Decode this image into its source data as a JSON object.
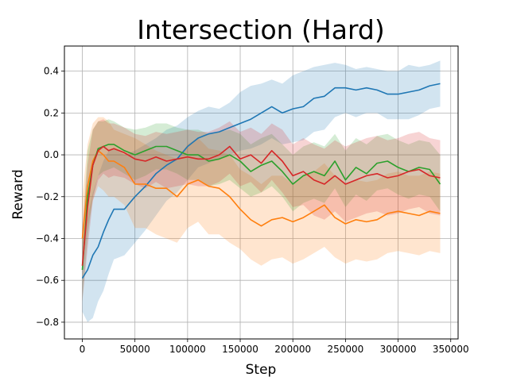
{
  "chart_data": {
    "type": "line",
    "title": "Intersection (Hard)",
    "xlabel": "Step",
    "ylabel": "Reward",
    "xlim": [
      -17000,
      357000
    ],
    "ylim": [
      -0.88,
      0.52
    ],
    "xticks": [
      0,
      50000,
      100000,
      150000,
      200000,
      250000,
      300000,
      350000
    ],
    "xtick_labels": [
      "0",
      "50000",
      "100000",
      "150000",
      "200000",
      "250000",
      "300000",
      "350000"
    ],
    "yticks": [
      -0.8,
      -0.6,
      -0.4,
      -0.2,
      0.0,
      0.2,
      0.4
    ],
    "ytick_labels": [
      "−0.8",
      "−0.6",
      "−0.4",
      "−0.2",
      "0.0",
      "0.2",
      "0.4"
    ],
    "grid": true,
    "series": [
      {
        "color": "#1f77b4",
        "x": [
          0,
          5000,
          10000,
          15000,
          20000,
          25000,
          30000,
          40000,
          50000,
          60000,
          70000,
          80000,
          90000,
          100000,
          110000,
          120000,
          130000,
          140000,
          150000,
          160000,
          170000,
          180000,
          190000,
          200000,
          210000,
          220000,
          230000,
          240000,
          250000,
          260000,
          270000,
          280000,
          290000,
          300000,
          310000,
          320000,
          330000,
          340000
        ],
        "y": [
          -0.59,
          -0.55,
          -0.48,
          -0.44,
          -0.37,
          -0.31,
          -0.26,
          -0.26,
          -0.2,
          -0.15,
          -0.09,
          -0.05,
          -0.02,
          0.04,
          0.08,
          0.1,
          0.11,
          0.13,
          0.15,
          0.17,
          0.2,
          0.23,
          0.2,
          0.22,
          0.23,
          0.27,
          0.28,
          0.32,
          0.32,
          0.31,
          0.32,
          0.31,
          0.29,
          0.29,
          0.3,
          0.31,
          0.33,
          0.34
        ],
        "upper": [
          -0.42,
          -0.3,
          -0.18,
          -0.1,
          -0.03,
          0.02,
          0.03,
          0.0,
          0.02,
          0.05,
          0.08,
          0.12,
          0.14,
          0.18,
          0.21,
          0.23,
          0.22,
          0.25,
          0.3,
          0.33,
          0.34,
          0.36,
          0.34,
          0.38,
          0.4,
          0.42,
          0.43,
          0.44,
          0.43,
          0.41,
          0.42,
          0.41,
          0.4,
          0.4,
          0.43,
          0.42,
          0.43,
          0.45
        ],
        "lower": [
          -0.75,
          -0.8,
          -0.78,
          -0.7,
          -0.65,
          -0.57,
          -0.5,
          -0.48,
          -0.42,
          -0.36,
          -0.29,
          -0.22,
          -0.18,
          -0.12,
          -0.06,
          -0.04,
          -0.02,
          0.0,
          0.02,
          0.03,
          0.05,
          0.08,
          0.05,
          0.06,
          0.07,
          0.11,
          0.12,
          0.18,
          0.2,
          0.18,
          0.2,
          0.2,
          0.17,
          0.17,
          0.17,
          0.19,
          0.22,
          0.23
        ]
      },
      {
        "color": "#ff7f0e",
        "x": [
          0,
          5000,
          10000,
          15000,
          20000,
          25000,
          30000,
          40000,
          50000,
          60000,
          70000,
          80000,
          90000,
          100000,
          110000,
          120000,
          130000,
          140000,
          150000,
          160000,
          170000,
          180000,
          190000,
          200000,
          210000,
          220000,
          230000,
          240000,
          250000,
          260000,
          270000,
          280000,
          290000,
          300000,
          310000,
          320000,
          330000,
          340000
        ],
        "y": [
          -0.4,
          -0.15,
          -0.03,
          0.02,
          0.0,
          -0.03,
          -0.03,
          -0.06,
          -0.14,
          -0.14,
          -0.16,
          -0.16,
          -0.2,
          -0.14,
          -0.12,
          -0.15,
          -0.16,
          -0.2,
          -0.26,
          -0.31,
          -0.34,
          -0.31,
          -0.3,
          -0.32,
          -0.3,
          -0.27,
          -0.24,
          -0.3,
          -0.33,
          -0.31,
          -0.32,
          -0.31,
          -0.28,
          -0.27,
          -0.28,
          -0.29,
          -0.27,
          -0.28
        ],
        "upper": [
          -0.2,
          0.05,
          0.15,
          0.18,
          0.18,
          0.16,
          0.12,
          0.1,
          0.08,
          0.05,
          0.02,
          0.0,
          -0.02,
          0.05,
          0.08,
          0.03,
          0.02,
          0.0,
          -0.07,
          -0.1,
          -0.14,
          -0.1,
          -0.1,
          -0.14,
          -0.1,
          -0.08,
          -0.04,
          -0.1,
          -0.14,
          -0.12,
          -0.13,
          -0.12,
          -0.09,
          -0.08,
          -0.1,
          -0.1,
          -0.08,
          -0.09
        ],
        "lower": [
          -0.55,
          -0.35,
          -0.22,
          -0.15,
          -0.17,
          -0.2,
          -0.2,
          -0.24,
          -0.35,
          -0.35,
          -0.38,
          -0.4,
          -0.42,
          -0.35,
          -0.32,
          -0.38,
          -0.38,
          -0.42,
          -0.45,
          -0.5,
          -0.53,
          -0.5,
          -0.49,
          -0.52,
          -0.5,
          -0.47,
          -0.44,
          -0.49,
          -0.52,
          -0.5,
          -0.51,
          -0.5,
          -0.47,
          -0.46,
          -0.47,
          -0.48,
          -0.46,
          -0.47
        ]
      },
      {
        "color": "#2ca02c",
        "x": [
          0,
          5000,
          10000,
          15000,
          20000,
          25000,
          30000,
          40000,
          50000,
          60000,
          70000,
          80000,
          90000,
          100000,
          110000,
          120000,
          130000,
          140000,
          150000,
          160000,
          170000,
          180000,
          190000,
          200000,
          210000,
          220000,
          230000,
          240000,
          250000,
          260000,
          270000,
          280000,
          290000,
          300000,
          310000,
          320000,
          330000,
          340000
        ],
        "y": [
          -0.55,
          -0.2,
          -0.05,
          0.03,
          0.04,
          0.05,
          0.05,
          0.02,
          0.0,
          0.02,
          0.04,
          0.04,
          0.02,
          0.0,
          0.0,
          -0.03,
          -0.02,
          0.0,
          -0.03,
          -0.08,
          -0.05,
          -0.03,
          -0.08,
          -0.14,
          -0.1,
          -0.08,
          -0.1,
          -0.03,
          -0.12,
          -0.06,
          -0.09,
          -0.04,
          -0.03,
          -0.06,
          -0.08,
          -0.06,
          -0.07,
          -0.14
        ],
        "upper": [
          -0.38,
          0.02,
          0.12,
          0.16,
          0.16,
          0.17,
          0.16,
          0.13,
          0.12,
          0.13,
          0.15,
          0.15,
          0.13,
          0.12,
          0.12,
          0.1,
          0.11,
          0.12,
          0.1,
          0.05,
          0.08,
          0.1,
          0.05,
          0.0,
          0.04,
          0.06,
          0.04,
          0.1,
          0.02,
          0.08,
          0.05,
          0.09,
          0.1,
          0.07,
          0.05,
          0.07,
          0.06,
          0.0
        ],
        "lower": [
          -0.7,
          -0.4,
          -0.2,
          -0.1,
          -0.08,
          -0.07,
          -0.06,
          -0.09,
          -0.12,
          -0.1,
          -0.07,
          -0.07,
          -0.09,
          -0.12,
          -0.12,
          -0.15,
          -0.14,
          -0.12,
          -0.16,
          -0.2,
          -0.18,
          -0.15,
          -0.2,
          -0.27,
          -0.23,
          -0.21,
          -0.23,
          -0.16,
          -0.25,
          -0.19,
          -0.22,
          -0.17,
          -0.16,
          -0.19,
          -0.21,
          -0.19,
          -0.2,
          -0.27
        ]
      },
      {
        "color": "#d62728",
        "x": [
          0,
          5000,
          10000,
          15000,
          20000,
          25000,
          30000,
          40000,
          50000,
          60000,
          70000,
          80000,
          90000,
          100000,
          110000,
          120000,
          130000,
          140000,
          150000,
          160000,
          170000,
          180000,
          190000,
          200000,
          210000,
          220000,
          230000,
          240000,
          250000,
          260000,
          270000,
          280000,
          290000,
          300000,
          310000,
          320000,
          330000,
          340000
        ],
        "y": [
          -0.53,
          -0.25,
          -0.05,
          0.02,
          0.04,
          0.02,
          0.03,
          0.01,
          -0.02,
          -0.03,
          -0.01,
          -0.03,
          -0.02,
          -0.01,
          -0.02,
          -0.02,
          0.0,
          0.04,
          -0.02,
          0.0,
          -0.04,
          0.02,
          -0.03,
          -0.1,
          -0.08,
          -0.12,
          -0.14,
          -0.1,
          -0.14,
          -0.12,
          -0.1,
          -0.09,
          -0.11,
          -0.1,
          -0.08,
          -0.07,
          -0.1,
          -0.11
        ],
        "upper": [
          -0.35,
          -0.05,
          0.12,
          0.16,
          0.17,
          0.15,
          0.15,
          0.13,
          0.1,
          0.09,
          0.11,
          0.1,
          0.11,
          0.12,
          0.11,
          0.11,
          0.13,
          0.16,
          0.11,
          0.13,
          0.1,
          0.15,
          0.12,
          0.05,
          0.08,
          0.05,
          0.03,
          0.07,
          0.04,
          0.06,
          0.08,
          0.09,
          0.07,
          0.08,
          0.1,
          0.11,
          0.08,
          0.07
        ],
        "lower": [
          -0.7,
          -0.45,
          -0.22,
          -0.12,
          -0.09,
          -0.11,
          -0.1,
          -0.11,
          -0.14,
          -0.16,
          -0.13,
          -0.16,
          -0.15,
          -0.14,
          -0.15,
          -0.15,
          -0.13,
          -0.09,
          -0.15,
          -0.13,
          -0.18,
          -0.12,
          -0.18,
          -0.25,
          -0.24,
          -0.29,
          -0.31,
          -0.27,
          -0.32,
          -0.3,
          -0.28,
          -0.27,
          -0.29,
          -0.28,
          -0.26,
          -0.25,
          -0.28,
          -0.29
        ]
      }
    ]
  }
}
